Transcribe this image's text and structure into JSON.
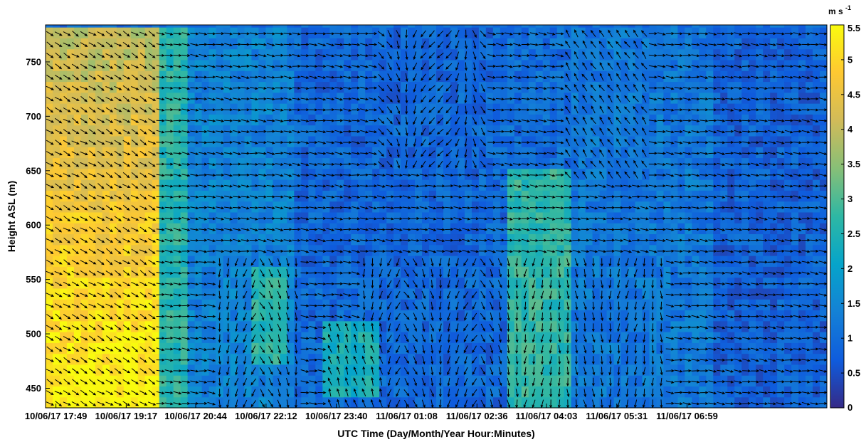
{
  "chart_data": {
    "type": "heatmap",
    "title": "",
    "xlabel": "UTC Time (Day/Month/Year Hour:Minutes)",
    "ylabel": "Height ASL (m)",
    "xlim_hours": [
      17.6,
      33.9
    ],
    "ylim": [
      432,
      784
    ],
    "x_ticks": [
      {
        "label": "10/06/17 17:49",
        "hour": 17.817
      },
      {
        "label": "10/06/17 19:17",
        "hour": 19.283
      },
      {
        "label": "10/06/17 20:44",
        "hour": 20.733
      },
      {
        "label": "10/06/17 22:12",
        "hour": 22.2
      },
      {
        "label": "10/06/17 23:40",
        "hour": 23.667
      },
      {
        "label": "11/06/17 01:08",
        "hour": 25.133
      },
      {
        "label": "11/06/17 02:36",
        "hour": 26.6
      },
      {
        "label": "11/06/17 04:03",
        "hour": 28.05
      },
      {
        "label": "11/06/17 05:31",
        "hour": 29.517
      },
      {
        "label": "11/06/17 06:59",
        "hour": 30.983
      }
    ],
    "y_ticks": [
      450,
      500,
      550,
      600,
      650,
      700,
      750
    ],
    "colorbar": {
      "unit": "m s",
      "unit_exponent": "-1",
      "min": 0,
      "max": 5.5,
      "ticks": [
        "0",
        "0.5",
        "1",
        "1.5",
        "2",
        "2.5",
        "3",
        "3.5",
        "4",
        "4.5",
        "5",
        "5.5"
      ],
      "colormap": "parula",
      "colors": [
        "#352a87",
        "#0f5cdd",
        "#1481d6",
        "#06a4ca",
        "#2eb7a4",
        "#87bf77",
        "#d1bb59",
        "#fec832",
        "#f9fb0e"
      ]
    },
    "grid_spacing_height": 10,
    "speed_regions": [
      {
        "t0": 17.6,
        "t1": 19.9,
        "h0": 432,
        "h1": 784,
        "speed": 5.0,
        "profile": "decreasing_with_height"
      },
      {
        "t0": 19.9,
        "t1": 20.6,
        "h0": 432,
        "h1": 784,
        "speed": 2.6
      },
      {
        "t0": 20.6,
        "t1": 22.8,
        "h0": 432,
        "h1": 784,
        "speed": 1.4
      },
      {
        "t0": 21.9,
        "t1": 22.6,
        "h0": 470,
        "h1": 560,
        "speed": 2.6
      },
      {
        "t0": 22.8,
        "t1": 27.2,
        "h0": 432,
        "h1": 784,
        "speed": 0.9
      },
      {
        "t0": 23.4,
        "t1": 24.6,
        "h0": 440,
        "h1": 510,
        "speed": 2.4
      },
      {
        "t0": 27.2,
        "t1": 28.6,
        "h0": 432,
        "h1": 650,
        "speed": 2.7
      },
      {
        "t0": 28.6,
        "t1": 31.5,
        "h0": 432,
        "h1": 784,
        "speed": 1.2
      },
      {
        "t0": 31.5,
        "t1": 33.9,
        "h0": 432,
        "h1": 784,
        "speed": 0.8
      }
    ],
    "wind_vectors": "direction arrows overlaid on each grid cell: westerly flow aloft, convergent southward arrows near 22:12, 01:08, 02:36 and 04:03-06:00 in the lower layer"
  }
}
